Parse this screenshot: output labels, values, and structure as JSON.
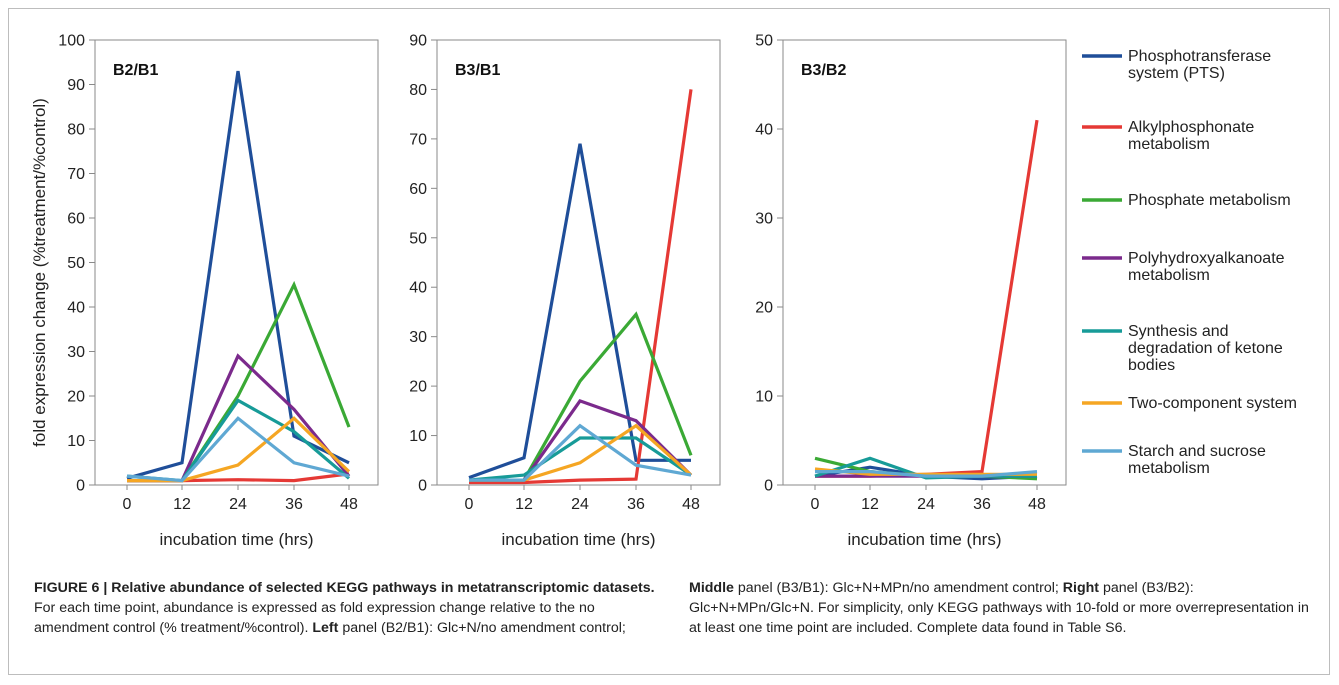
{
  "chart_data": [
    {
      "type": "line",
      "title": "B2/B1",
      "xlabel": "incubation time (hrs)",
      "ylabel": "fold expression change (%treatment/%control)",
      "x": [
        0,
        12,
        24,
        36,
        48
      ],
      "xticks": [
        "0",
        "12",
        "24",
        "36",
        "48"
      ],
      "ylim": [
        0,
        100
      ],
      "yticks": [
        "0",
        "10",
        "20",
        "30",
        "40",
        "50",
        "60",
        "70",
        "80",
        "90",
        "100"
      ],
      "series": [
        {
          "name": "Phosphotransferase system (PTS)",
          "values": [
            1.5,
            5,
            93,
            11,
            5
          ]
        },
        {
          "name": "Alkylphosphonate metabolism",
          "values": [
            1,
            1,
            1.2,
            1,
            2.5
          ]
        },
        {
          "name": "Phosphate metabolism",
          "values": [
            1,
            1,
            20,
            45,
            13
          ]
        },
        {
          "name": "Polyhydroxyalkanoate metabolism",
          "values": [
            1,
            1,
            29,
            17,
            2
          ]
        },
        {
          "name": "Synthesis and degradation of ketone bodies",
          "values": [
            2,
            1,
            19,
            12,
            1.5
          ]
        },
        {
          "name": "Two-component system",
          "values": [
            1,
            1,
            4.5,
            15,
            3
          ]
        },
        {
          "name": "Starch and sucrose metabolism",
          "values": [
            2,
            1,
            15,
            5,
            2
          ]
        }
      ]
    },
    {
      "type": "line",
      "title": "B3/B1",
      "xlabel": "incubation time (hrs)",
      "ylabel": "",
      "x": [
        0,
        12,
        24,
        36,
        48
      ],
      "xticks": [
        "0",
        "12",
        "24",
        "36",
        "48"
      ],
      "ylim": [
        0,
        90
      ],
      "yticks": [
        "0",
        "10",
        "20",
        "30",
        "40",
        "50",
        "60",
        "70",
        "80",
        "90"
      ],
      "series": [
        {
          "name": "Phosphotransferase system (PTS)",
          "values": [
            1.5,
            5.5,
            69,
            5,
            5
          ]
        },
        {
          "name": "Alkylphosphonate metabolism",
          "values": [
            0.5,
            0.5,
            1,
            1.2,
            80
          ]
        },
        {
          "name": "Phosphate metabolism",
          "values": [
            1,
            1,
            21,
            34.5,
            6
          ]
        },
        {
          "name": "Polyhydroxyalkanoate metabolism",
          "values": [
            1,
            1,
            17,
            13,
            2
          ]
        },
        {
          "name": "Synthesis and degradation of ketone bodies",
          "values": [
            1,
            2,
            9.5,
            9.5,
            2
          ]
        },
        {
          "name": "Two-component system",
          "values": [
            1,
            1,
            4.5,
            12,
            2
          ]
        },
        {
          "name": "Starch and sucrose metabolism",
          "values": [
            1,
            1,
            12,
            4,
            2
          ]
        }
      ]
    },
    {
      "type": "line",
      "title": "B3/B2",
      "xlabel": "incubation time (hrs)",
      "ylabel": "",
      "x": [
        0,
        12,
        24,
        36,
        48
      ],
      "xticks": [
        "0",
        "12",
        "24",
        "36",
        "48"
      ],
      "ylim": [
        0,
        50
      ],
      "yticks": [
        "0",
        "10",
        "20",
        "30",
        "40",
        "50"
      ],
      "series": [
        {
          "name": "Phosphotransferase system (PTS)",
          "values": [
            1,
            2,
            1,
            0.7,
            1
          ]
        },
        {
          "name": "Alkylphosphonate metabolism",
          "values": [
            1,
            1,
            1.2,
            1.5,
            41
          ]
        },
        {
          "name": "Phosphate metabolism",
          "values": [
            3,
            1.5,
            1,
            1,
            0.7
          ]
        },
        {
          "name": "Polyhydroxyalkanoate metabolism",
          "values": [
            1,
            1,
            1,
            1,
            1
          ]
        },
        {
          "name": "Synthesis and degradation of ketone bodies",
          "values": [
            1,
            3,
            0.8,
            1,
            1
          ]
        },
        {
          "name": "Two-component system",
          "values": [
            1.8,
            1.2,
            1.2,
            1.2,
            1.2
          ]
        },
        {
          "name": "Starch and sucrose metabolism",
          "values": [
            1.5,
            1.5,
            1,
            1,
            1.5
          ]
        }
      ]
    }
  ],
  "legend": {
    "placement": "right",
    "items": [
      {
        "lines": [
          "Phosphotransferase",
          "system (PTS)"
        ],
        "color": "#1f4e99"
      },
      {
        "lines": [
          "Alkylphosphonate",
          "metabolism"
        ],
        "color": "#e53935"
      },
      {
        "lines": [
          "Phosphate metabolism"
        ],
        "color": "#3aa935"
      },
      {
        "lines": [
          "Polyhydroxyalkanoate",
          "metabolism"
        ],
        "color": "#7b2a8c"
      },
      {
        "lines": [
          "Synthesis and",
          "degradation of ketone",
          "bodies"
        ],
        "color": "#179b98"
      },
      {
        "lines": [
          "Two-component system"
        ],
        "color": "#f5a623"
      },
      {
        "lines": [
          "Starch and sucrose",
          "metabolism"
        ],
        "color": "#5fa8d3"
      }
    ]
  },
  "caption": {
    "label": "FIGURE 6 | Relative abundance of selected KEGG pathways in metatranscriptomic datasets.",
    "text1": " For each time point, abundance is expressed as fold expression change relative to the no amendment control (% treatment/%control). ",
    "left_word": "Left",
    "left_text": " panel (B2/B1): Glc+N/no amendment control;",
    "middle_word": "Middle",
    "middle_text": " panel (B3/B1): Glc+N+MPn/no amendment control; ",
    "right_word": "Right",
    "right_text": " panel (B3/B2): Glc+N+MPn/Glc+N. For simplicity, only KEGG pathways with 10-fold or more overrepresentation in at least one time point are included. Complete data found in Table S6."
  }
}
